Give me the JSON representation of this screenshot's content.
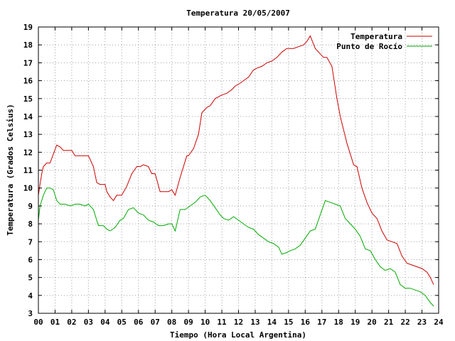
{
  "chart_data": {
    "type": "line",
    "title": "Temperatura 20/05/2007",
    "xlabel": "Tiempo (Hora Local Argentina)",
    "ylabel": "Temperatura (Grados Celsius)",
    "xlim": [
      0,
      24
    ],
    "ylim": [
      3,
      19
    ],
    "xticks": [
      "00",
      "01",
      "02",
      "03",
      "04",
      "05",
      "06",
      "07",
      "08",
      "09",
      "10",
      "11",
      "12",
      "13",
      "14",
      "15",
      "16",
      "17",
      "18",
      "19",
      "20",
      "21",
      "22",
      "23",
      "24"
    ],
    "yticks": [
      "3",
      "4",
      "5",
      "6",
      "7",
      "8",
      "9",
      "10",
      "11",
      "12",
      "13",
      "14",
      "15",
      "16",
      "17",
      "18",
      "19"
    ],
    "grid": true,
    "legend_position": "top-right",
    "series": [
      {
        "name": "Temperatura",
        "color": "#cc0000",
        "x": [
          0.0,
          0.1,
          0.2,
          0.3,
          0.5,
          0.7,
          0.9,
          1.1,
          1.3,
          1.5,
          2.0,
          2.2,
          2.5,
          3.0,
          3.3,
          3.5,
          3.7,
          4.0,
          4.1,
          4.3,
          4.5,
          4.7,
          5.0,
          5.3,
          5.6,
          5.9,
          6.1,
          6.3,
          6.6,
          6.8,
          7.0,
          7.3,
          7.6,
          7.8,
          8.0,
          8.2,
          8.5,
          8.9,
          9.0,
          9.3,
          9.6,
          9.8,
          10.1,
          10.3,
          10.6,
          11.0,
          11.3,
          11.6,
          11.8,
          12.0,
          12.3,
          12.6,
          12.9,
          13.1,
          13.4,
          13.7,
          14.0,
          14.3,
          14.6,
          14.9,
          15.3,
          15.6,
          15.9,
          16.1,
          16.3,
          16.6,
          16.9,
          17.1,
          17.3,
          17.6,
          17.9,
          18.1,
          18.5,
          18.9,
          19.1,
          19.4,
          19.7,
          20.0,
          20.3,
          20.6,
          20.9,
          21.2,
          21.5,
          21.8,
          22.1,
          22.4,
          22.7,
          23.0,
          23.3,
          23.5,
          23.7
        ],
        "values": [
          9.6,
          10.2,
          10.8,
          11.2,
          11.4,
          11.4,
          11.9,
          12.4,
          12.3,
          12.1,
          12.1,
          11.8,
          11.8,
          11.8,
          11.2,
          10.3,
          10.2,
          10.2,
          9.8,
          9.5,
          9.3,
          9.6,
          9.6,
          10.1,
          10.8,
          11.2,
          11.2,
          11.3,
          11.2,
          10.8,
          10.8,
          9.8,
          9.8,
          9.8,
          9.9,
          9.6,
          10.6,
          11.8,
          11.8,
          12.2,
          13.0,
          14.2,
          14.5,
          14.6,
          15.0,
          15.2,
          15.3,
          15.5,
          15.7,
          15.8,
          16.0,
          16.2,
          16.6,
          16.7,
          16.8,
          17.0,
          17.1,
          17.3,
          17.6,
          17.8,
          17.8,
          17.9,
          18.0,
          18.2,
          18.5,
          17.8,
          17.5,
          17.3,
          17.3,
          16.8,
          15.0,
          14.0,
          12.5,
          11.3,
          11.2,
          10.0,
          9.2,
          8.6,
          8.3,
          7.6,
          7.1,
          7.0,
          6.9,
          6.2,
          5.8,
          5.7,
          5.6,
          5.5,
          5.3,
          5.0,
          4.6
        ]
      },
      {
        "name": "Punto de Rocío",
        "color": "#00aa00",
        "x": [
          0.0,
          0.1,
          0.3,
          0.5,
          0.7,
          0.9,
          1.1,
          1.3,
          1.6,
          1.9,
          2.2,
          2.5,
          2.8,
          3.0,
          3.3,
          3.6,
          3.9,
          4.1,
          4.3,
          4.6,
          4.9,
          5.1,
          5.4,
          5.7,
          6.0,
          6.3,
          6.6,
          6.9,
          7.2,
          7.5,
          7.8,
          8.0,
          8.2,
          8.5,
          8.8,
          9.1,
          9.4,
          9.7,
          10.0,
          10.3,
          10.6,
          10.9,
          11.1,
          11.4,
          11.7,
          12.0,
          12.3,
          12.6,
          12.9,
          13.2,
          13.5,
          13.8,
          14.1,
          14.4,
          14.6,
          14.9,
          15.1,
          15.4,
          15.7,
          16.0,
          16.3,
          16.6,
          16.9,
          17.2,
          17.5,
          17.8,
          18.1,
          18.4,
          18.7,
          19.0,
          19.3,
          19.6,
          19.9,
          20.2,
          20.5,
          20.8,
          21.1,
          21.4,
          21.7,
          22.0,
          22.3,
          22.6,
          22.9,
          23.2,
          23.5,
          23.7
        ],
        "values": [
          8.2,
          9.0,
          9.6,
          10.0,
          10.0,
          9.9,
          9.3,
          9.1,
          9.1,
          9.0,
          9.1,
          9.1,
          9.0,
          9.1,
          8.8,
          7.9,
          7.9,
          7.7,
          7.6,
          7.8,
          8.2,
          8.3,
          8.8,
          8.9,
          8.6,
          8.5,
          8.2,
          8.1,
          7.9,
          7.9,
          8.0,
          8.0,
          7.6,
          8.8,
          8.8,
          9.0,
          9.2,
          9.5,
          9.6,
          9.3,
          8.9,
          8.5,
          8.3,
          8.2,
          8.4,
          8.2,
          8.0,
          7.8,
          7.7,
          7.4,
          7.2,
          7.0,
          6.9,
          6.7,
          6.3,
          6.4,
          6.5,
          6.6,
          6.8,
          7.2,
          7.6,
          7.7,
          8.5,
          9.3,
          9.2,
          9.1,
          9.0,
          8.3,
          8.0,
          7.7,
          7.3,
          6.6,
          6.5,
          6.0,
          5.6,
          5.4,
          5.5,
          5.3,
          4.6,
          4.4,
          4.4,
          4.3,
          4.2,
          4.0,
          3.6,
          3.4
        ]
      }
    ]
  }
}
